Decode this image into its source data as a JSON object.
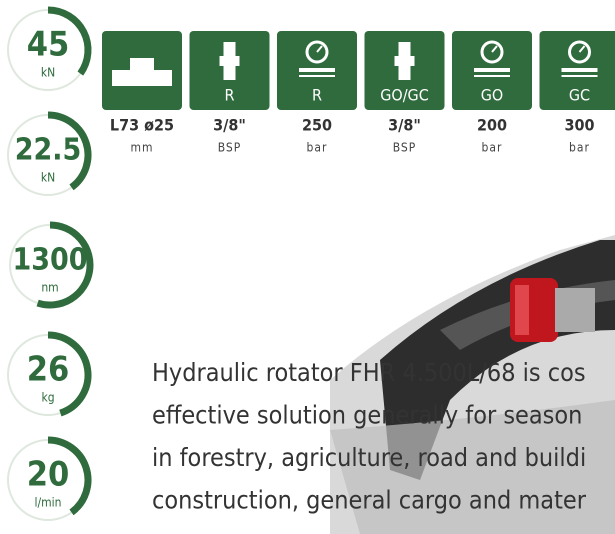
{
  "gauges": [
    {
      "value": "45",
      "unit": "kN"
    },
    {
      "value": "22.5",
      "unit": "kN"
    },
    {
      "value": "1300",
      "unit": "nm"
    },
    {
      "value": "26",
      "unit": "kg"
    },
    {
      "value": "20",
      "unit": "l/min"
    }
  ],
  "connections": [
    {
      "label": null,
      "spec": "L73 ø25",
      "unit": "mm"
    },
    {
      "label": "R",
      "spec": "3/8\"",
      "unit": "BSP"
    },
    {
      "label": "R",
      "spec": "250",
      "unit": "bar"
    },
    {
      "label": "GO/GC",
      "spec": "3/8\"",
      "unit": "BSP"
    },
    {
      "label": "GO",
      "spec": "200",
      "unit": "bar"
    },
    {
      "label": "GC",
      "spec": "300",
      "unit": "bar"
    }
  ],
  "description": [
    "Hydraulic rotator FHR 4.500L/68 is cos",
    "effective solution generally for season",
    "in forestry, agriculture, road and buildi",
    "construction, general cargo and mater"
  ]
}
